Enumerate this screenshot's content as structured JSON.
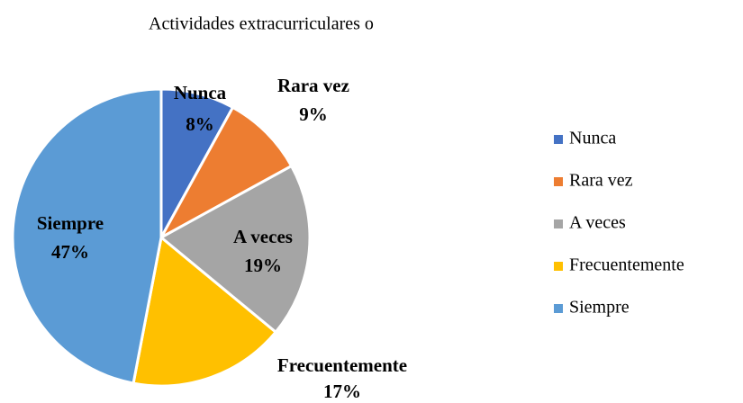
{
  "chart_data": {
    "type": "pie",
    "title": "Actividades extracurriculares o",
    "categories": [
      "Nunca",
      "Rara vez",
      "A veces",
      "Frecuentemente",
      "Siempre"
    ],
    "values": [
      8,
      9,
      19,
      17,
      47
    ],
    "value_labels": [
      "8%",
      "9%",
      "19%",
      "17%",
      "47%"
    ],
    "colors": [
      "#4472c4",
      "#ed7d31",
      "#a5a5a5",
      "#ffc000",
      "#5b9bd5"
    ],
    "legend": "right"
  }
}
